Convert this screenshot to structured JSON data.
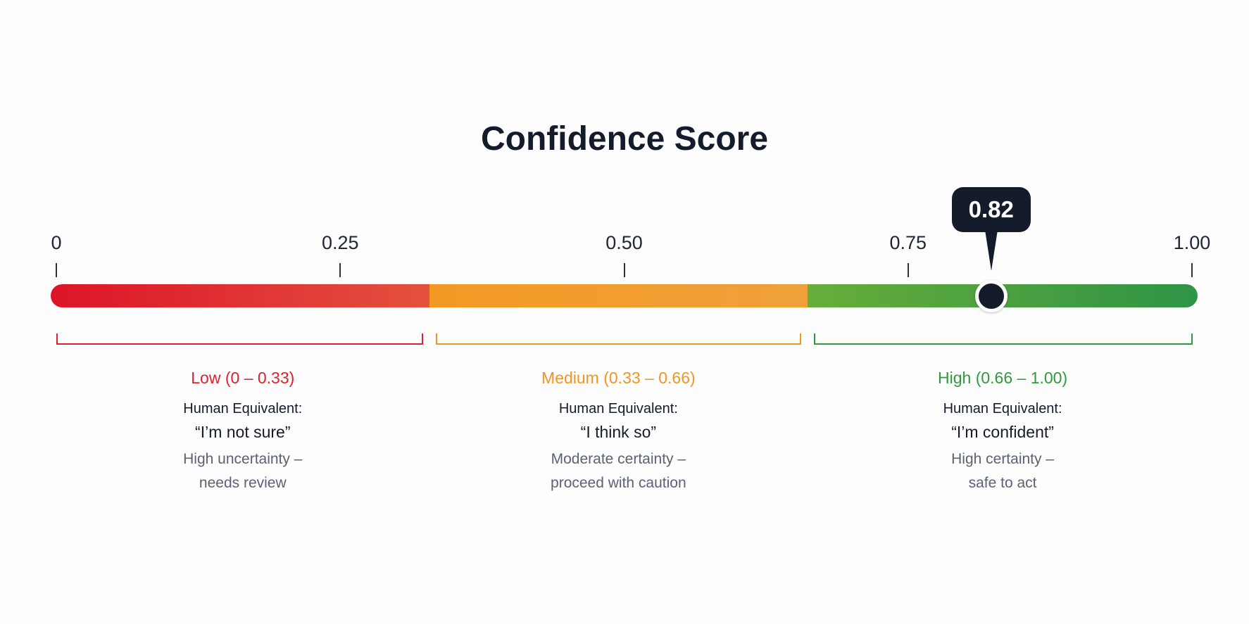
{
  "title": "Confidence Score",
  "scale": {
    "min": 0,
    "max": 1,
    "ticks": [
      {
        "value": 0,
        "label": "0"
      },
      {
        "value": 0.25,
        "label": "0.25"
      },
      {
        "value": 0.5,
        "label": "0.50"
      },
      {
        "value": 0.75,
        "label": "0.75"
      },
      {
        "value": 1,
        "label": "1.00"
      }
    ]
  },
  "marker": {
    "value": 0.82,
    "label": "0.82"
  },
  "bands": [
    {
      "from": 0,
      "to": 0.33,
      "name": "Low (0 – 0.33)",
      "human_equivalent_label": "Human Equivalent:",
      "quote": "“I’m not sure”",
      "description_line1": "High uncertainty –",
      "description_line2": "needs review",
      "color": "#e1202d",
      "gradient_start": "#dc1428",
      "gradient_end": "#e4513f"
    },
    {
      "from": 0.33,
      "to": 0.66,
      "name": "Medium (0.33 – 0.66)",
      "human_equivalent_label": "Human Equivalent:",
      "quote": "“I think so”",
      "description_line1": "Moderate certainty –",
      "description_line2": "proceed with caution",
      "color": "#f0951f",
      "gradient_start": "#f39a25",
      "gradient_end": "#f0a03a"
    },
    {
      "from": 0.66,
      "to": 1,
      "name": "High (0.66 – 1.00)",
      "human_equivalent_label": "Human Equivalent:",
      "quote": "“I’m confident”",
      "description_line1": "High certainty –",
      "description_line2": "safe to act",
      "color": "#2e9a3e",
      "gradient_start": "#67ad3a",
      "gradient_end": "#2f9446"
    }
  ]
}
